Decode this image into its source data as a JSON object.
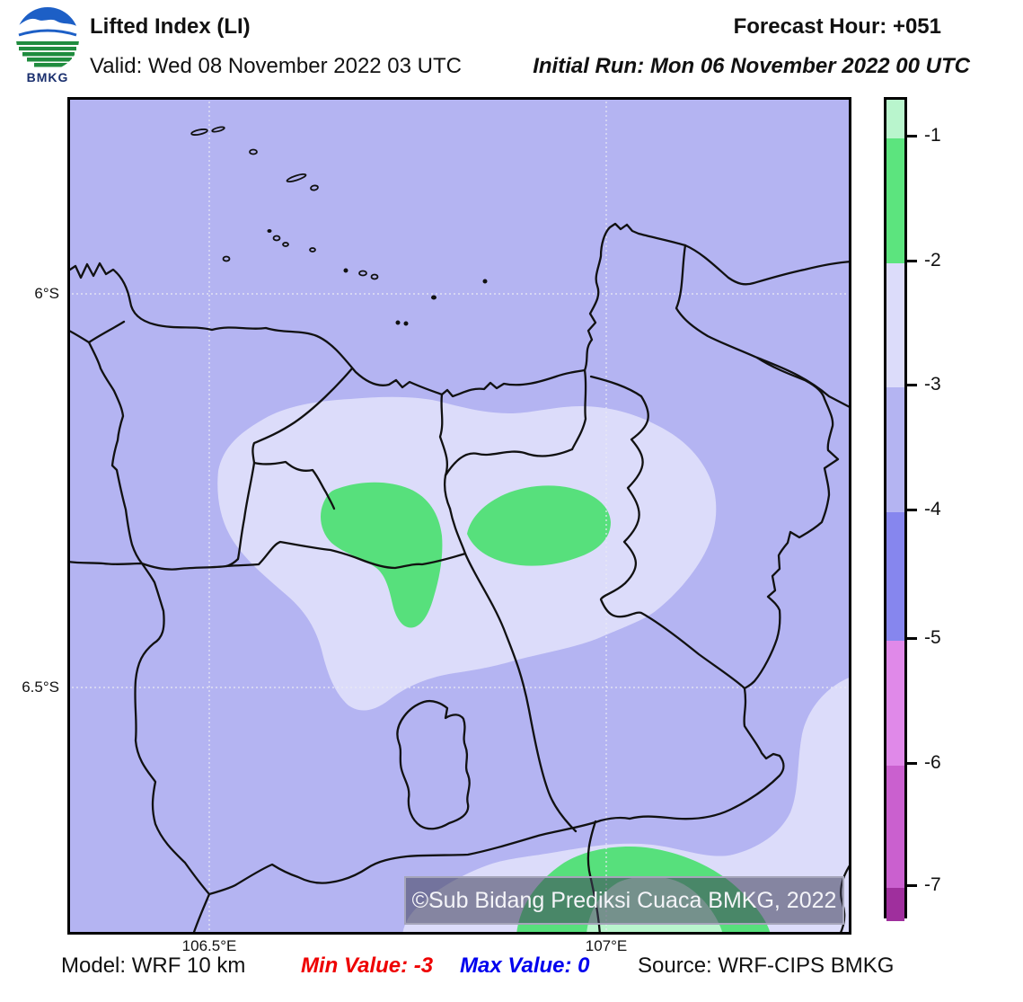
{
  "header": {
    "logo_text": "BMKG",
    "title": "Lifted Index (LI)",
    "valid": "Valid: Wed 08 November 2022 03 UTC",
    "forecast_hour": "Forecast Hour: +051",
    "initial_run": "Initial Run: Mon 06 November 2022 00 UTC"
  },
  "map": {
    "y_ticks": [
      {
        "label": "6°S"
      },
      {
        "label": "6.5°S"
      }
    ],
    "x_ticks": [
      {
        "label": "106.5°E",
        "x": 233
      },
      {
        "label": "107°E",
        "x": 675
      }
    ],
    "watermark": "©Sub Bidang Prediksi Cuaca BMKG, 2022"
  },
  "colorbar": {
    "tick_labels": [
      "-1",
      "-2",
      "-3",
      "-4",
      "-5",
      "-6",
      "-7"
    ],
    "segment_colors": [
      "#b9f5cd",
      "#5ce47e",
      "#dcdcfa",
      "#b4b4f2",
      "#8686ee",
      "#e089e9",
      "#ca60cf",
      "#9f2f9d"
    ]
  },
  "footer": {
    "items": [
      {
        "text": "Model: WRF 10 km",
        "color": "#111111",
        "bold": false,
        "italic": false
      },
      {
        "text": "Min Value: -3",
        "color": "#ee0000",
        "bold": true,
        "italic": true
      },
      {
        "text": "Max Value: 0",
        "color": "#0000ee",
        "bold": true,
        "italic": true
      },
      {
        "text": "Source: WRF-CIPS BMKG",
        "color": "#111111",
        "bold": false,
        "italic": false
      }
    ]
  },
  "colors": {
    "bg": "#b4b4f2",
    "pale": "#dcdcfa",
    "green": "#57e07c",
    "mint": "#b9f5cd",
    "boundary": "#111111",
    "logo_blue": "#1d5fc6",
    "logo_green": "#1f8c3e"
  },
  "islands": [
    [
      222,
      147,
      9,
      2.5,
      -12,
      0
    ],
    [
      243,
      144,
      7,
      2,
      -15,
      0
    ],
    [
      282,
      169,
      4,
      2.5,
      0,
      0
    ],
    [
      330,
      198,
      11,
      2.5,
      -18,
      0
    ],
    [
      350,
      209,
      4,
      2.5,
      -10,
      0
    ],
    [
      308,
      265,
      3.5,
      2.5,
      0,
      0
    ],
    [
      318,
      272,
      3,
      2,
      0,
      0
    ],
    [
      300,
      257,
      2,
      1.5,
      0,
      1
    ],
    [
      252,
      288,
      3.5,
      2.5,
      0,
      0
    ],
    [
      348,
      278,
      3,
      2,
      0,
      0
    ],
    [
      404,
      304,
      4,
      2.5,
      0,
      0
    ],
    [
      417,
      308,
      3.5,
      2.5,
      0,
      0
    ],
    [
      385,
      301,
      2,
      2,
      0,
      1
    ],
    [
      483,
      331,
      2.5,
      2,
      0,
      1
    ],
    [
      540,
      313,
      2,
      2,
      0,
      1
    ],
    [
      443,
      359,
      2,
      2,
      0,
      1
    ],
    [
      452,
      360,
      2,
      2,
      0,
      1
    ]
  ],
  "chart_data": {
    "type": "heatmap",
    "title": "Lifted Index (LI)",
    "colorbar_levels": [
      -1,
      -2,
      -3,
      -4,
      -5,
      -6,
      -7
    ],
    "colorbar_colors": [
      "#b9f5cd",
      "#5ce47e",
      "#dcdcfa",
      "#b4b4f2",
      "#8686ee",
      "#e089e9",
      "#ca60cf",
      "#9f2f9d"
    ],
    "min_value": -3,
    "max_value": 0,
    "x_ticks": [
      "106.5°E",
      "107°E"
    ],
    "y_ticks": [
      "6°S",
      "6.5°S"
    ],
    "legend_position": "right-colorbar"
  }
}
